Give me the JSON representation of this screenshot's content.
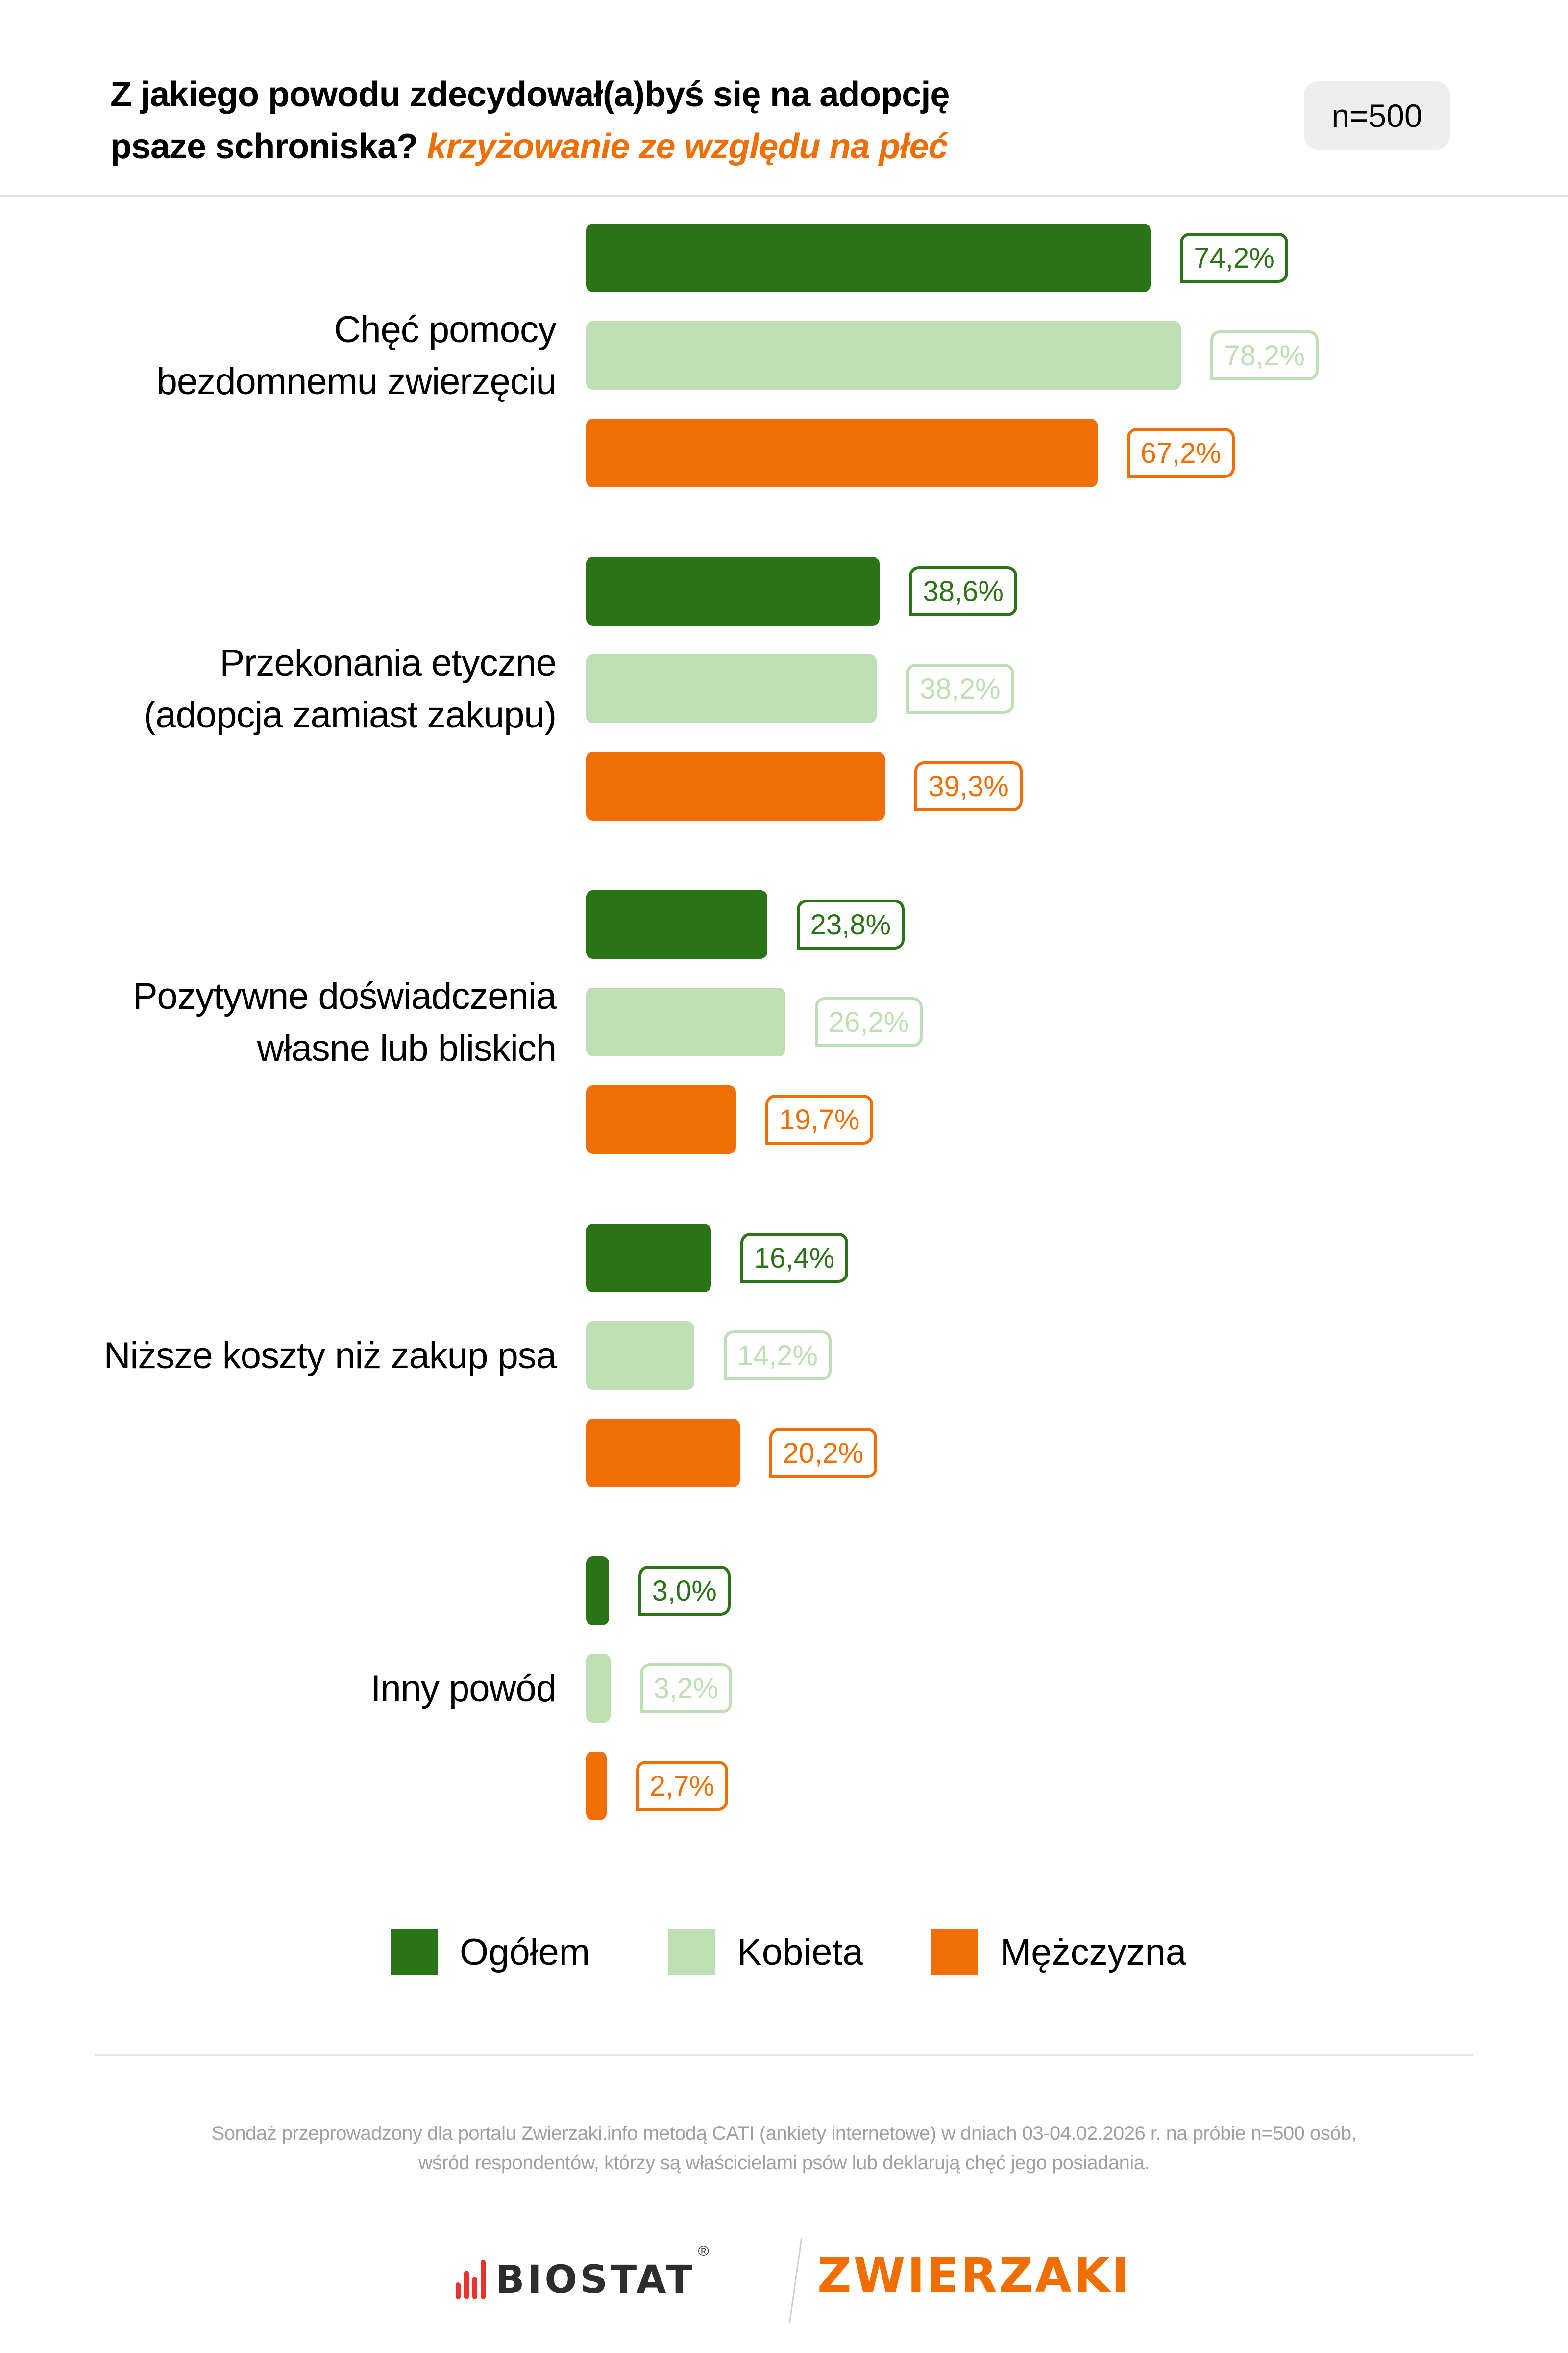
{
  "header": {
    "title_main": "Z jakiego powodu zdecydował(a)byś się na adopcję psaze schroniska?",
    "title_line1": "Z jakiego powodu zdecydował(a)byś się na adopcję",
    "title_line2": "psaze schroniska?",
    "title_accent": "krzyżowanie ze względu na płeć",
    "sample_badge": "n=500"
  },
  "colors": {
    "ogolem": "#2b7317",
    "kobieta": "#bddfb3",
    "mezczyzna": "#f06e03",
    "accent": "#f06e03",
    "badge_bg": "#eeeeee",
    "footnote": "#a0a0a0"
  },
  "chart_data": {
    "type": "bar",
    "orientation": "horizontal",
    "title": "Z jakiego powodu zdecydował(a)byś się na adopcję psaze schroniska? krzyżowanie ze względu na płeć",
    "subtitle": "n=500",
    "categories": [
      "Chęć pomocy bezdomnemu zwierzęciu",
      "Przekonania etyczne (adopcja zamiast zakupu)",
      "Pozytywne doświadczenia własne lub bliskich",
      "Niższe koszty niż zakup psa",
      "Inny powód"
    ],
    "series": [
      {
        "name": "Ogółem",
        "color": "#2b7317",
        "values": [
          74.2,
          38.6,
          23.8,
          16.4,
          3.0
        ]
      },
      {
        "name": "Kobieta",
        "color": "#bddfb3",
        "values": [
          78.2,
          38.2,
          26.2,
          14.2,
          3.2
        ]
      },
      {
        "name": "Mężczyzna",
        "color": "#f06e03",
        "values": [
          67.2,
          39.3,
          19.7,
          20.2,
          2.7
        ]
      }
    ],
    "unit": "%",
    "xlabel": "",
    "ylabel": "",
    "grid": false,
    "legend_position": "bottom"
  },
  "groups": [
    {
      "label": "Chęć pomocy\nbezdomnemu zwierzęciu",
      "bars": [
        {
          "series": "Ogółem",
          "value": 74.2,
          "text": "74,2%"
        },
        {
          "series": "Kobieta",
          "value": 78.2,
          "text": "78,2%"
        },
        {
          "series": "Mężczyzna",
          "value": 67.2,
          "text": "67,2%"
        }
      ]
    },
    {
      "label": "Przekonania etyczne\n(adopcja zamiast zakupu)",
      "bars": [
        {
          "series": "Ogółem",
          "value": 38.6,
          "text": "38,6%"
        },
        {
          "series": "Kobieta",
          "value": 38.2,
          "text": "38,2%"
        },
        {
          "series": "Mężczyzna",
          "value": 39.3,
          "text": "39,3%"
        }
      ]
    },
    {
      "label": "Pozytywne doświadczenia\nwłasne lub bliskich",
      "bars": [
        {
          "series": "Ogółem",
          "value": 23.8,
          "text": "23,8%"
        },
        {
          "series": "Kobieta",
          "value": 26.2,
          "text": "26,2%"
        },
        {
          "series": "Mężczyzna",
          "value": 19.7,
          "text": "19,7%"
        }
      ]
    },
    {
      "label": "Niższe koszty niż zakup psa",
      "bars": [
        {
          "series": "Ogółem",
          "value": 16.4,
          "text": "16,4%"
        },
        {
          "series": "Kobieta",
          "value": 14.2,
          "text": "14,2%"
        },
        {
          "series": "Mężczyzna",
          "value": 20.2,
          "text": "20,2%"
        }
      ]
    },
    {
      "label": "Inny powód",
      "bars": [
        {
          "series": "Ogółem",
          "value": 3.0,
          "text": "3,0%"
        },
        {
          "series": "Kobieta",
          "value": 3.2,
          "text": "3,2%"
        },
        {
          "series": "Mężczyzna",
          "value": 2.7,
          "text": "2,7%"
        }
      ]
    }
  ],
  "legend": {
    "items": [
      {
        "label": "Ogółem",
        "color": "#2b7317"
      },
      {
        "label": "Kobieta",
        "color": "#bddfb3"
      },
      {
        "label": "Mężczyzna",
        "color": "#f06e03"
      }
    ]
  },
  "footer": {
    "note_line1": "Sondaż przeprowadzony dla portalu Zwierzaki.info metodą CATI (ankiety internetowe) w dniach 03-04.02.2026 r. na próbie n=500 osób,",
    "note_line2": "wśród respondentów, którzy są właścicielami psów lub deklarują chęć jego posiadania.",
    "logo_biostat": "BIOSTAT",
    "logo_biostat_reg": "®",
    "logo_zwierzaki": "ZWIERZAKI"
  }
}
